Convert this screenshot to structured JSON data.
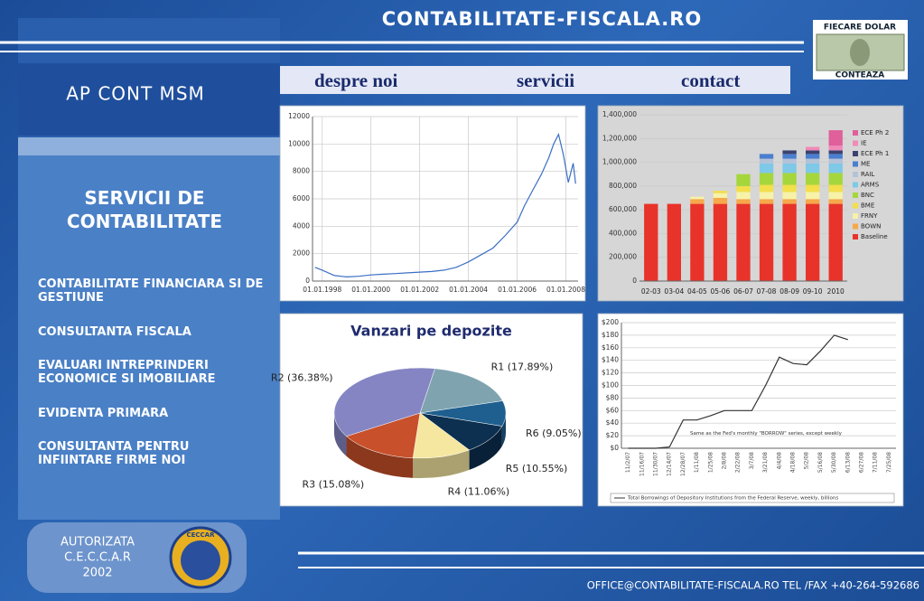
{
  "header": {
    "site": "CONTABILITATE-FISCALA.RO",
    "badge_top": "FIECARE DOLAR",
    "badge_bottom": "CONTEAZA"
  },
  "nav": [
    "despre noi",
    "servicii",
    "contact"
  ],
  "sidebar": {
    "brand": "AP CONT MSM",
    "heading": "SERVICII DE CONTABILITATE",
    "services": [
      "CONTABILITATE FINANCIARA SI DE GESTIUNE",
      "CONSULTANTA FISCALA",
      "EVALUARI INTREPRINDERI ECONOMICE SI IMOBILIARE",
      "EVIDENTA PRIMARA",
      "CONSULTANTA PENTRU INFIINTARE FIRME NOI"
    ]
  },
  "footer": {
    "auth": [
      "AUTORIZATA",
      "C.E.C.C.A.R",
      "2002"
    ],
    "logo": "CECCAR",
    "contact": "OFFICE@CONTABILITATE-FISCALA.RO TEL /FAX +40-264-592686"
  },
  "chart_data": [
    {
      "type": "line",
      "color": "#3a6fc4",
      "grid": true,
      "x": [
        1997.7,
        1998,
        1998.5,
        1999,
        1999.5,
        2000,
        2000.5,
        2001,
        2001.5,
        2002,
        2002.5,
        2003,
        2003.5,
        2004,
        2004.5,
        2005,
        2005.5,
        2006,
        2006.3,
        2006.6,
        2007,
        2007.3,
        2007.5,
        2007.7,
        2007.9,
        2008.1,
        2008.3,
        2008.4
      ],
      "values": [
        1000,
        800,
        400,
        300,
        350,
        450,
        500,
        550,
        600,
        650,
        700,
        800,
        1000,
        1400,
        1900,
        2400,
        3300,
        4300,
        5500,
        6500,
        7800,
        9000,
        10000,
        10700,
        9200,
        7200,
        8600,
        7100
      ],
      "xlim": [
        1997.6,
        2008.5
      ],
      "xticks": [
        {
          "value": 1998,
          "label": "01.01.1998"
        },
        {
          "value": 2000,
          "label": "01.01.2000"
        },
        {
          "value": 2002,
          "label": "01.01.2002"
        },
        {
          "value": 2004,
          "label": "01.01.2004"
        },
        {
          "value": 2006,
          "label": "01.01.2006"
        },
        {
          "value": 2008,
          "label": "01.01.2008"
        }
      ],
      "ylim": [
        0,
        12000
      ],
      "yticks": [
        0,
        2000,
        4000,
        6000,
        8000,
        10000,
        12000
      ]
    },
    {
      "type": "bar",
      "grid": true,
      "categories": [
        "02-03",
        "03-04",
        "04-05",
        "05-06",
        "06-07",
        "07-08",
        "08-09",
        "09-10",
        "2010"
      ],
      "series": [
        {
          "name": "Baseline",
          "color": "#e8332a",
          "values": [
            650000,
            650000,
            650000,
            650000,
            650000,
            650000,
            650000,
            650000,
            650000
          ]
        },
        {
          "name": "BOWN",
          "color": "#f7a84a",
          "values": [
            0,
            0,
            40000,
            50000,
            40000,
            40000,
            40000,
            40000,
            40000
          ]
        },
        {
          "name": "FRNY",
          "color": "#f7f2a8",
          "values": [
            0,
            0,
            20000,
            40000,
            60000,
            60000,
            60000,
            60000,
            60000
          ]
        },
        {
          "name": "BME",
          "color": "#f2df4a",
          "values": [
            0,
            0,
            0,
            20000,
            50000,
            60000,
            60000,
            60000,
            60000
          ]
        },
        {
          "name": "BNC",
          "color": "#a5d63c",
          "values": [
            0,
            0,
            0,
            0,
            100000,
            100000,
            100000,
            100000,
            100000
          ]
        },
        {
          "name": "ARMS",
          "color": "#7ec8e8",
          "values": [
            0,
            0,
            0,
            0,
            0,
            80000,
            80000,
            80000,
            80000
          ]
        },
        {
          "name": "RAIL",
          "color": "#b4c2d8",
          "values": [
            0,
            0,
            0,
            0,
            0,
            40000,
            40000,
            40000,
            40000
          ]
        },
        {
          "name": "ME",
          "color": "#4a7fcf",
          "values": [
            0,
            0,
            0,
            0,
            0,
            40000,
            40000,
            40000,
            40000
          ]
        },
        {
          "name": "ECE Ph 1",
          "color": "#3a4270",
          "values": [
            0,
            0,
            0,
            0,
            0,
            0,
            30000,
            30000,
            30000
          ]
        },
        {
          "name": "IE",
          "color": "#f08ab8",
          "values": [
            0,
            0,
            0,
            0,
            0,
            0,
            0,
            30000,
            40000
          ]
        },
        {
          "name": "ECE Ph 2",
          "color": "#e0609c",
          "values": [
            0,
            0,
            0,
            0,
            0,
            0,
            0,
            0,
            130000
          ]
        }
      ],
      "ylim": [
        0,
        1400000
      ],
      "yticks": [
        0,
        {
          "value": 200000,
          "label": "200,000"
        },
        {
          "value": 400000,
          "label": "400,000"
        },
        {
          "value": 600000,
          "label": "600,000"
        },
        {
          "value": 800000,
          "label": "800,000"
        },
        {
          "value": 1000000,
          "label": "1,000,000"
        },
        {
          "value": 1200000,
          "label": "1,200,000"
        },
        {
          "value": 1400000,
          "label": "1,400,000"
        }
      ]
    },
    {
      "type": "pie",
      "title": "Vanzari pe depozite",
      "values": [
        17.89,
        9.05,
        10.55,
        11.06,
        15.08,
        36.38
      ],
      "value_labels": [
        "R1 (17.89%)",
        "R6 (9.05%)",
        "R5 (10.55%)",
        "R4 (11.06%)",
        "R3 (15.08%)",
        "R2 (36.38%)"
      ],
      "colors": [
        "#7fa4b0",
        "#1f5f8f",
        "#0d3050",
        "#f5e6a0",
        "#c8502a",
        "#8585c4"
      ]
    },
    {
      "type": "line",
      "grid": true,
      "annotation": "Same as the Fed's monthly \"BORROW\" series, except weekly",
      "categories": [
        "11/2/07",
        "11/16/07",
        "11/30/07",
        "12/14/07",
        "12/28/07",
        "1/11/08",
        "1/25/08",
        "2/8/08",
        "2/22/08",
        "3/7/08",
        "3/21/08",
        "4/4/08",
        "4/18/08",
        "5/2/08",
        "5/16/08",
        "5/30/08",
        "6/13/08",
        "6/27/08",
        "7/11/08",
        "7/25/08"
      ],
      "series": [
        {
          "name": "Total Borrowings of Depository Institutions from the Federal Reserve, weekly, billions",
          "color": "#333333",
          "values": [
            0,
            0,
            0,
            2,
            45,
            45,
            52,
            60,
            60,
            60,
            100,
            145,
            135,
            133,
            155,
            180,
            173,
            null,
            null,
            null
          ]
        }
      ],
      "ylim": [
        0,
        200
      ],
      "yticks": [
        {
          "value": 0,
          "label": "$0"
        },
        {
          "value": 20,
          "label": "$20"
        },
        {
          "value": 40,
          "label": "$40"
        },
        {
          "value": 60,
          "label": "$60"
        },
        {
          "value": 80,
          "label": "$80"
        },
        {
          "value": 100,
          "label": "$100"
        },
        {
          "value": 120,
          "label": "$120"
        },
        {
          "value": 140,
          "label": "$140"
        },
        {
          "value": 160,
          "label": "$160"
        },
        {
          "value": 180,
          "label": "$180"
        },
        {
          "value": 200,
          "label": "$200"
        }
      ]
    }
  ]
}
